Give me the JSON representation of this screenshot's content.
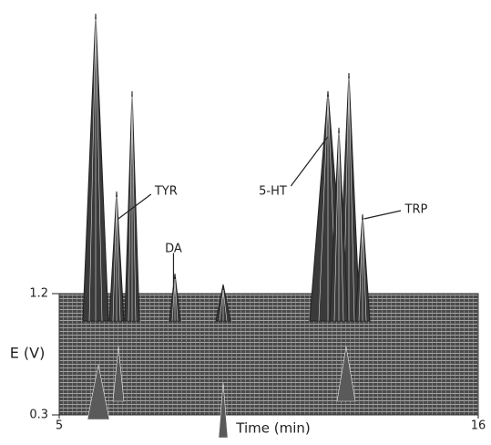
{
  "chart_data": {
    "type": "surface3d",
    "xlabel": "Time (min)",
    "ylabel": "E (V)",
    "xlim": [
      5,
      16
    ],
    "xticks": [
      5,
      16
    ],
    "ylim": [
      0.3,
      1.2
    ],
    "yticks": [
      0.3,
      1.2
    ],
    "annotations": [
      {
        "text": "TYR",
        "x": 6.55
      },
      {
        "text": "DA",
        "x": 8.0
      },
      {
        "text": "5-HT",
        "x": 12.05
      },
      {
        "text": "TRP",
        "x": 13.0
      }
    ]
  }
}
